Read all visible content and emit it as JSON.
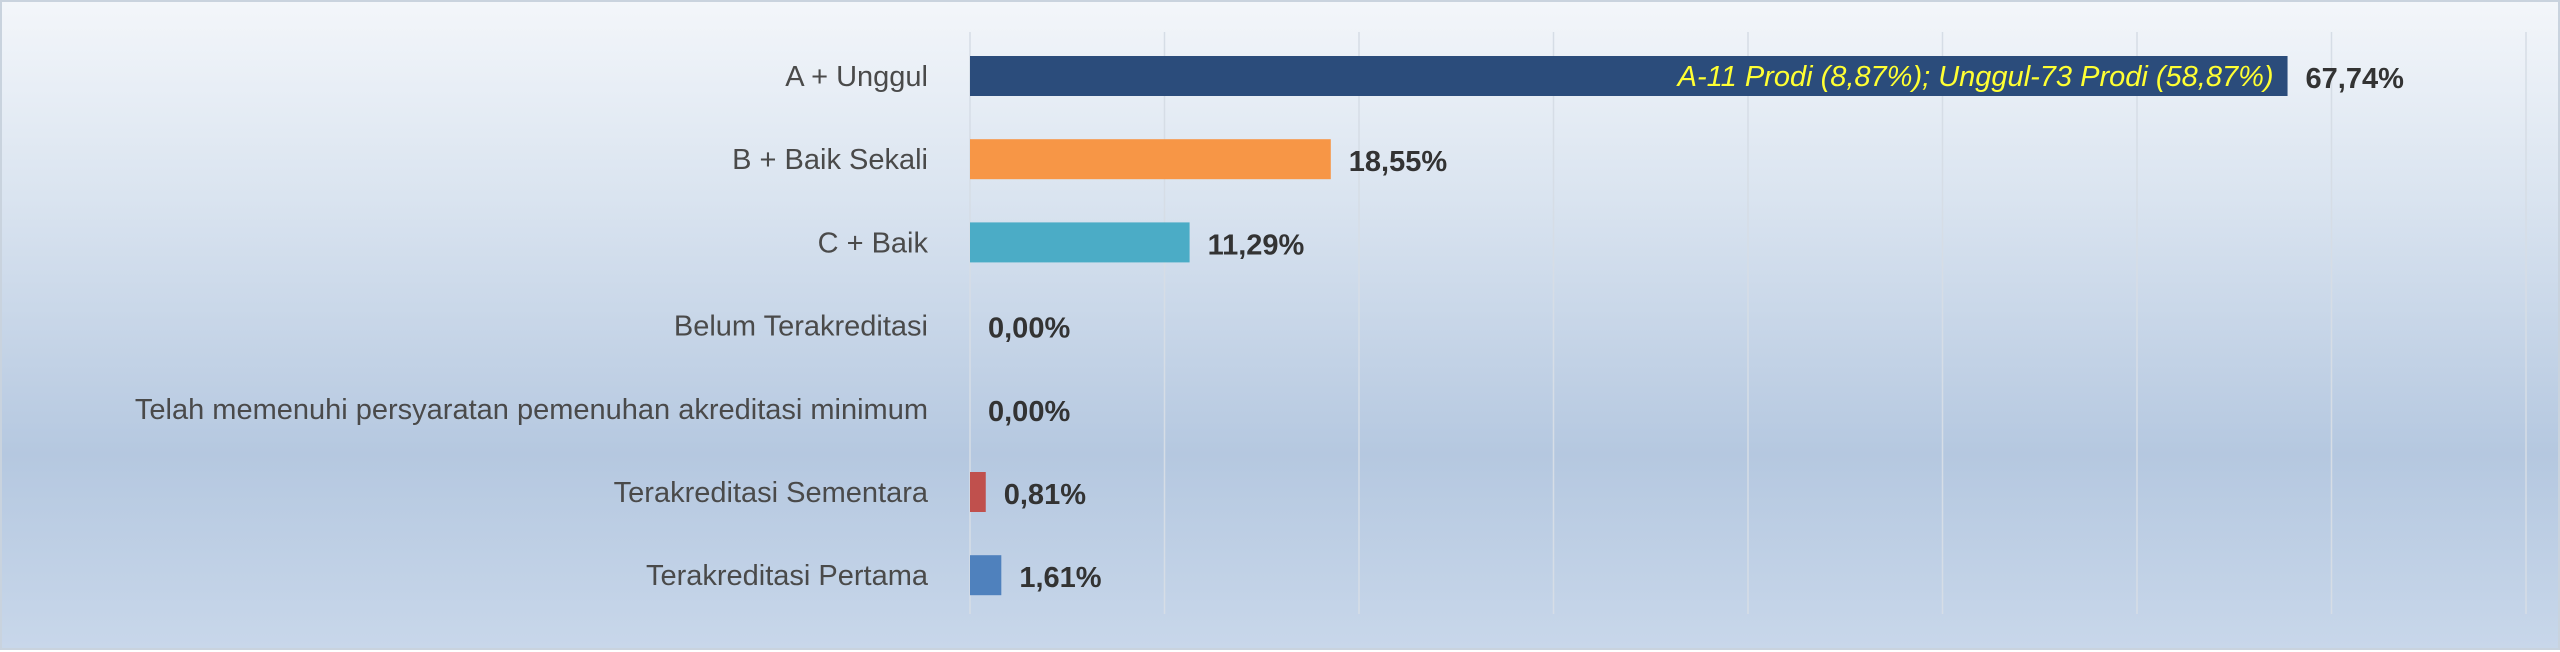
{
  "chart_data": {
    "type": "bar",
    "orientation": "horizontal",
    "categories": [
      "A + Unggul",
      "B + Baik Sekali",
      "C + Baik",
      "Belum Terakreditasi",
      "Telah memenuhi persyaratan pemenuhan akreditasi minimum",
      "Terakreditasi Sementara",
      "Terakreditasi Pertama"
    ],
    "values": [
      67.74,
      18.55,
      11.29,
      0.0,
      0.0,
      0.81,
      1.61
    ],
    "value_labels": [
      "67,74%",
      "18,55%",
      "11,29%",
      "0,00%",
      "0,00%",
      "0,81%",
      "1,61%"
    ],
    "bar_colors": [
      "#2b4c7b",
      "#f79646",
      "#4bacc6",
      "#7f7f7f",
      "#7f7f7f",
      "#c0504d",
      "#4f81bd"
    ],
    "annotation": {
      "category_index": 0,
      "text": "A-11 Prodi (8,87%); Unggul-73 Prodi (58,87%)",
      "color": "#ffff33"
    },
    "xlim": [
      0,
      80
    ],
    "grid_step": 10,
    "grid": true,
    "legend": "none"
  }
}
